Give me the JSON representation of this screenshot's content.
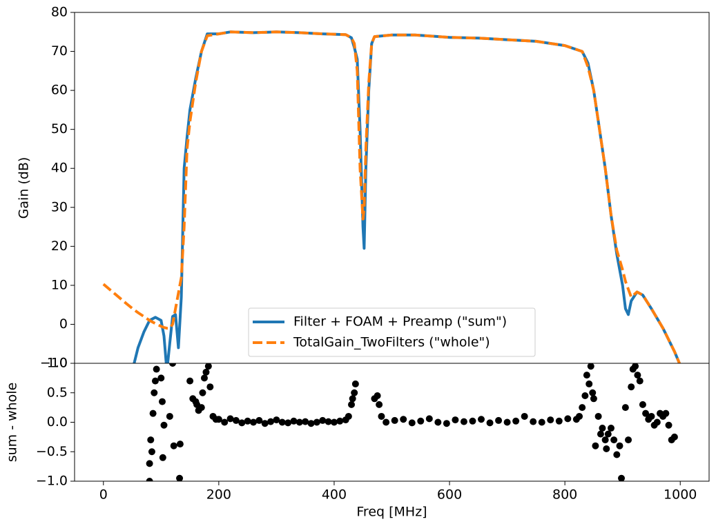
{
  "chart_data": [
    {
      "type": "line",
      "ylabel": "Gain (dB)",
      "legend": "lower center",
      "xlim": [
        -50,
        1050
      ],
      "ylim": [
        -10,
        80
      ],
      "yticks": [
        {
          "value": -10,
          "label": "−10"
        },
        0,
        10,
        20,
        30,
        40,
        50,
        60,
        70,
        80
      ],
      "x": [
        0,
        20,
        40,
        50,
        60,
        70,
        80,
        90,
        100,
        105,
        110,
        115,
        120,
        125,
        130,
        135,
        140,
        145,
        150,
        160,
        170,
        180,
        200,
        220,
        260,
        300,
        340,
        380,
        420,
        430,
        435,
        440,
        445,
        450,
        452,
        455,
        460,
        465,
        470,
        500,
        540,
        600,
        650,
        700,
        750,
        800,
        830,
        840,
        850,
        860,
        870,
        880,
        890,
        900,
        905,
        910,
        915,
        925,
        935,
        950,
        970,
        990,
        1000
      ],
      "series": [
        {
          "name": "Filter + FOAM + Preamp (\"sum\")",
          "color": "#1f77b4",
          "dash": false,
          "values": [
            null,
            null,
            null,
            -12,
            -6,
            -2,
            1,
            1.8,
            1,
            -3,
            -12,
            -5,
            2,
            2.5,
            -6,
            7,
            40,
            48,
            55,
            63,
            70,
            74.5,
            74.5,
            75,
            74.8,
            75,
            74.8,
            74.5,
            74.3,
            73.5,
            71,
            68,
            50,
            25,
            19.5,
            40,
            60,
            72,
            73.8,
            74.2,
            74.2,
            73.6,
            73.4,
            73,
            72.6,
            71.5,
            70,
            67,
            60,
            50,
            40,
            28,
            18,
            10,
            4,
            2.5,
            6,
            8.3,
            7.5,
            4,
            -1,
            -7,
            -10.5
          ]
        },
        {
          "name": "TotalGain_TwoFilters (\"whole\")",
          "color": "#ff7f0e",
          "dash": true,
          "values": [
            10.3,
            7.8,
            5.3,
            4.1,
            3,
            2,
            1,
            0.2,
            -0.5,
            -0.8,
            -1,
            -1,
            0,
            4,
            8,
            12,
            25,
            45,
            52,
            62,
            70,
            74,
            74.5,
            75,
            74.8,
            75,
            74.8,
            74.5,
            74.3,
            73.5,
            72,
            65,
            40,
            27,
            30,
            45,
            62,
            72,
            73.8,
            74.2,
            74.2,
            73.6,
            73.4,
            73,
            72.6,
            71.5,
            70,
            66,
            60,
            50,
            40,
            28,
            19,
            14,
            11,
            9,
            7,
            8.3,
            7.5,
            4,
            -1,
            -7,
            -10.5
          ]
        }
      ]
    },
    {
      "type": "scatter",
      "ylabel": "sum - whole",
      "xlabel": "Freq [MHz]",
      "color": "#000000",
      "xlim": [
        -50,
        1050
      ],
      "ylim": [
        -1,
        1
      ],
      "xticks": [
        0,
        200,
        400,
        600,
        800,
        1000
      ],
      "yticks": [
        {
          "value": -1,
          "label": "−1.0"
        },
        {
          "value": -0.5,
          "label": "−0.5"
        },
        {
          "value": 0,
          "label": "0.0"
        },
        0.5,
        {
          "value": 1,
          "label": "1.0"
        }
      ],
      "x": [
        80,
        80,
        82,
        84,
        86,
        88,
        90,
        92,
        100,
        102,
        103,
        105,
        115,
        120,
        122,
        132,
        133,
        150,
        155,
        160,
        162,
        165,
        170,
        172,
        175,
        178,
        182,
        185,
        190,
        195,
        200,
        210,
        220,
        230,
        240,
        250,
        260,
        270,
        280,
        290,
        300,
        310,
        320,
        330,
        340,
        350,
        360,
        370,
        380,
        390,
        400,
        410,
        420,
        425,
        430,
        432,
        435,
        437,
        470,
        475,
        478,
        482,
        490,
        505,
        520,
        535,
        550,
        565,
        580,
        595,
        610,
        625,
        640,
        655,
        670,
        685,
        700,
        715,
        730,
        745,
        760,
        775,
        790,
        805,
        820,
        825,
        830,
        835,
        838,
        842,
        845,
        848,
        850,
        853,
        858,
        862,
        865,
        870,
        872,
        875,
        880,
        885,
        890,
        895,
        898,
        905,
        910,
        915,
        918,
        922,
        926,
        930,
        935,
        940,
        945,
        950,
        955,
        960,
        965,
        970,
        975,
        980,
        985,
        990
      ],
      "values": [
        -1.0,
        -0.7,
        -0.3,
        -0.5,
        0.15,
        0.5,
        0.7,
        0.9,
        0.75,
        0.35,
        -0.6,
        -0.05,
        0.1,
        1.0,
        -0.4,
        -0.95,
        -0.37,
        0.7,
        0.4,
        0.35,
        0.3,
        0.2,
        0.25,
        0.5,
        0.75,
        0.85,
        0.95,
        0.6,
        0.1,
        0.05,
        0.05,
        0.0,
        0.06,
        0.03,
        -0.01,
        0.02,
        0.0,
        0.03,
        -0.02,
        0.01,
        0.04,
        0.0,
        -0.01,
        0.02,
        0.0,
        0.01,
        -0.02,
        0.0,
        0.03,
        0.01,
        0.0,
        0.02,
        0.04,
        0.1,
        0.3,
        0.4,
        0.5,
        0.65,
        0.4,
        0.45,
        0.3,
        0.1,
        0.0,
        0.03,
        0.05,
        -0.01,
        0.02,
        0.06,
        0.0,
        -0.02,
        0.04,
        0.01,
        0.02,
        0.05,
        -0.01,
        0.03,
        0.0,
        0.02,
        0.1,
        0.01,
        0.0,
        0.04,
        0.02,
        0.06,
        0.05,
        0.1,
        0.25,
        0.45,
        0.8,
        0.65,
        0.95,
        0.5,
        0.4,
        -0.4,
        0.1,
        -0.2,
        -0.1,
        -0.3,
        -0.45,
        -0.2,
        -0.1,
        -0.3,
        -0.55,
        -0.4,
        -0.95,
        0.25,
        -0.3,
        0.6,
        0.9,
        0.95,
        0.8,
        0.7,
        0.3,
        0.15,
        0.05,
        0.1,
        -0.05,
        0.0,
        0.15,
        0.1,
        0.15,
        -0.05,
        -0.3,
        -0.25
      ]
    }
  ]
}
